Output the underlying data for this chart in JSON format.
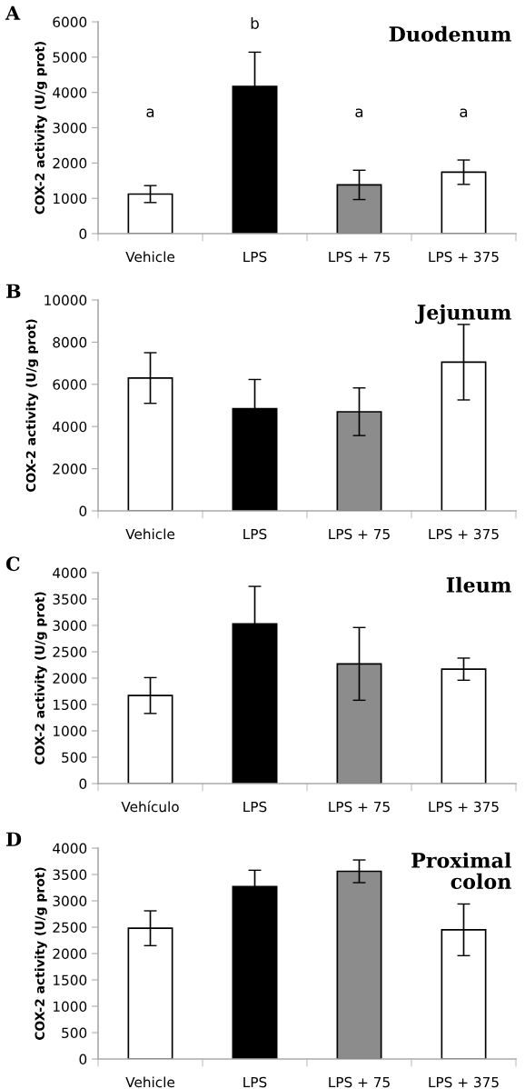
{
  "chart_data": [
    {
      "type": "bar",
      "title": "Duodenum",
      "ylabel": "COX-2 activity (U/g prot)",
      "categories": [
        "Vehicle",
        "LPS",
        "LPS + 75",
        "LPS + 375"
      ],
      "values": [
        1120,
        4170,
        1380,
        1740
      ],
      "errors": [
        240,
        970,
        415,
        345
      ],
      "colors": [
        "#ffffff",
        "#000000",
        "#8c8c8c",
        "#ffffff"
      ],
      "ylim": [
        0,
        6000
      ],
      "yticks": [
        0,
        1000,
        2000,
        3000,
        4000,
        5000,
        6000
      ],
      "grid": false,
      "legend": false,
      "annotations": [
        "A",
        "a",
        "b",
        "a",
        "a"
      ]
    },
    {
      "type": "bar",
      "title": "Jejunum",
      "ylabel": "COX-2 activity (U/g prot)",
      "categories": [
        "Vehicle",
        "LPS",
        "LPS + 75",
        "LPS + 375"
      ],
      "values": [
        6300,
        4850,
        4700,
        7050
      ],
      "errors": [
        1200,
        1380,
        1130,
        1790
      ],
      "colors": [
        "#ffffff",
        "#000000",
        "#8c8c8c",
        "#ffffff"
      ],
      "ylim": [
        0,
        10000
      ],
      "yticks": [
        0,
        2000,
        4000,
        6000,
        8000,
        10000
      ],
      "grid": false,
      "legend": false,
      "annotations": [
        "B"
      ]
    },
    {
      "type": "bar",
      "title": "Ileum",
      "ylabel": "COX-2 activity (U/g prot)",
      "categories": [
        "Vehículo",
        "LPS",
        "LPS + 75",
        "LPS + 375"
      ],
      "values": [
        1670,
        3030,
        2270,
        2170
      ],
      "errors": [
        340,
        710,
        690,
        210
      ],
      "colors": [
        "#ffffff",
        "#000000",
        "#8c8c8c",
        "#ffffff"
      ],
      "ylim": [
        0,
        4000
      ],
      "yticks": [
        0,
        500,
        1000,
        1500,
        2000,
        2500,
        3000,
        3500,
        4000
      ],
      "grid": false,
      "legend": false,
      "annotations": [
        "C"
      ]
    },
    {
      "type": "bar",
      "title": "Proximal\ncolon",
      "ylabel": "COX-2 activity (U/g prot)",
      "categories": [
        "Vehicle",
        "LPS",
        "LPS + 75",
        "LPS + 375"
      ],
      "values": [
        2480,
        3270,
        3560,
        2450
      ],
      "errors": [
        330,
        310,
        215,
        490
      ],
      "colors": [
        "#ffffff",
        "#000000",
        "#8c8c8c",
        "#ffffff"
      ],
      "ylim": [
        0,
        4000
      ],
      "yticks": [
        0,
        500,
        1000,
        1500,
        2000,
        2500,
        3000,
        3500,
        4000
      ],
      "grid": false,
      "legend": false,
      "annotations": [
        "D"
      ]
    }
  ]
}
